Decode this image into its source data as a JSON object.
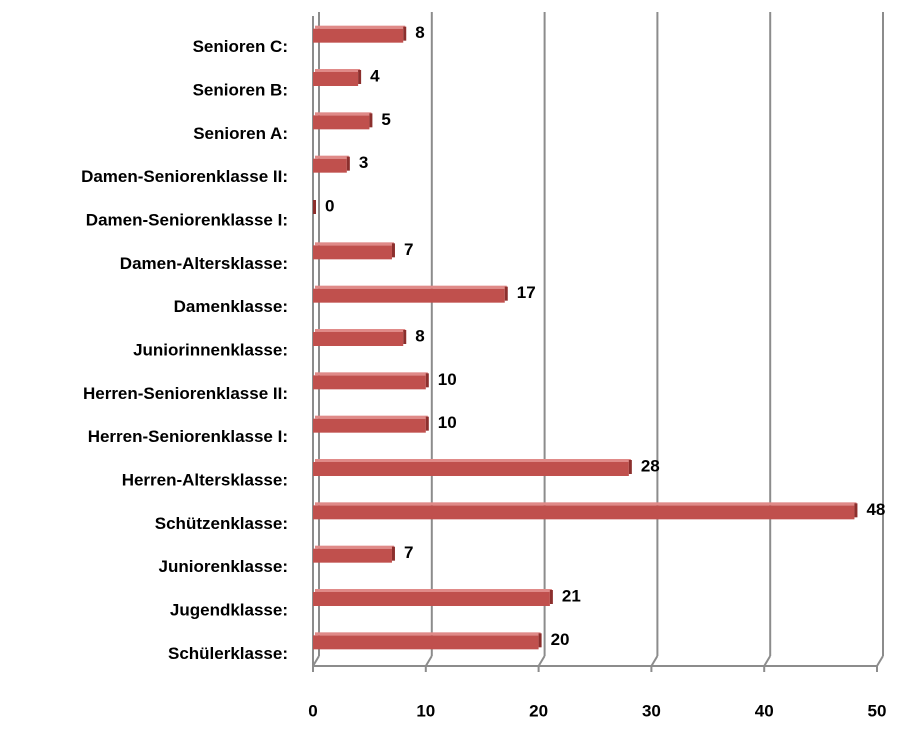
{
  "chart_data": {
    "type": "barh",
    "categories": [
      "Senioren C:",
      "Senioren B:",
      "Senioren A:",
      "Damen-Seniorenklasse II:",
      "Damen-Seniorenklasse I:",
      "Damen-Altersklasse:",
      "Damenklasse:",
      "Juniorinnenklasse:",
      "Herren-Seniorenklasse II:",
      "Herren-Seniorenklasse I:",
      "Herren-Altersklasse:",
      "Schützenklasse:",
      "Juniorenklasse:",
      "Jugendklasse:",
      "Schülerklasse:"
    ],
    "values": [
      8,
      4,
      5,
      3,
      0,
      7,
      17,
      8,
      10,
      10,
      28,
      48,
      7,
      21,
      20
    ],
    "color": "#c0504d",
    "xlim": [
      0,
      50
    ],
    "xticks": [
      0,
      10,
      20,
      30,
      40,
      50
    ],
    "grid": true
  }
}
